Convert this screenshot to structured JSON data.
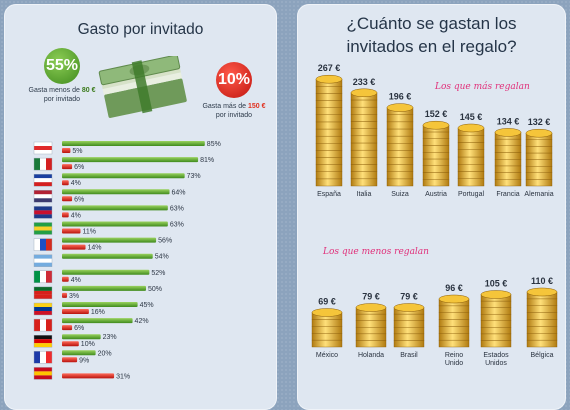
{
  "left": {
    "title": "Gasto por invitado",
    "green_badge": "55%",
    "green_caption": [
      "Gasta menos de ",
      "80 €",
      " por invitado"
    ],
    "red_badge": "10%",
    "red_caption": [
      "Gasta más de ",
      "150 €",
      " por invitado"
    ]
  },
  "right": {
    "title_line1": "¿Cuánto se gastan los",
    "title_line2": "invitados en el regalo?",
    "note_more": "Los que más regalan",
    "note_less": "Los que menos regalan"
  },
  "colors": {
    "green": "#5fae2d",
    "red": "#d8201a",
    "gold": "#e5b324"
  },
  "chart_data": [
    {
      "type": "bar",
      "title": "Gasto por invitado",
      "categories": [
        "Polonia",
        "México",
        "Chile",
        "Estados Unidos",
        "Reino Unido",
        "Brasil",
        "Rusia",
        "Argentina",
        "Italia",
        "Portugal",
        "Colombia",
        "Suiza",
        "Alemania",
        "Francia",
        "España"
      ],
      "series": [
        {
          "values": [
            85,
            81,
            73,
            64,
            63,
            63,
            56,
            54,
            52,
            50,
            45,
            42,
            23,
            20,
            null
          ]
        },
        {
          "values": [
            5,
            6,
            4,
            6,
            4,
            11,
            14,
            null,
            4,
            3,
            16,
            6,
            10,
            9,
            31
          ]
        }
      ],
      "value_labels_green": [
        "85%",
        "81%",
        "73%",
        "64%",
        "63%",
        "63%",
        "56%",
        "54%",
        "52%",
        "50%",
        "45%",
        "42%",
        "23%",
        "20%"
      ],
      "value_labels_red": [
        "5%",
        "6%",
        "4%",
        "6%",
        "4%",
        "11%",
        "14%",
        "4%",
        "3%",
        "16%",
        "6%",
        "10%",
        "9%",
        "31%"
      ],
      "xlim": [
        0,
        100
      ]
    },
    {
      "type": "bar",
      "title": "¿Cuánto se gastan los invitados en el regalo?",
      "groups": [
        {
          "name": "Los que más regalan",
          "categories": [
            "España",
            "Italia",
            "Suiza",
            "Austria",
            "Portugal",
            "Francia",
            "Alemania"
          ],
          "values": [
            267,
            233,
            196,
            152,
            145,
            134,
            132
          ],
          "labels": [
            "267 €",
            "233 €",
            "196 €",
            "152 €",
            "145 €",
            "134 €",
            "132 €"
          ]
        },
        {
          "name": "Los que menos regalan",
          "categories": [
            "México",
            "Holanda",
            "Brasil",
            "Reino Unido",
            "Estados Unidos",
            "Bélgica"
          ],
          "values": [
            69,
            79,
            79,
            96,
            105,
            110
          ],
          "labels": [
            "69 €",
            "79 €",
            "79 €",
            "96 €",
            "105 €",
            "110 €"
          ]
        }
      ]
    }
  ]
}
